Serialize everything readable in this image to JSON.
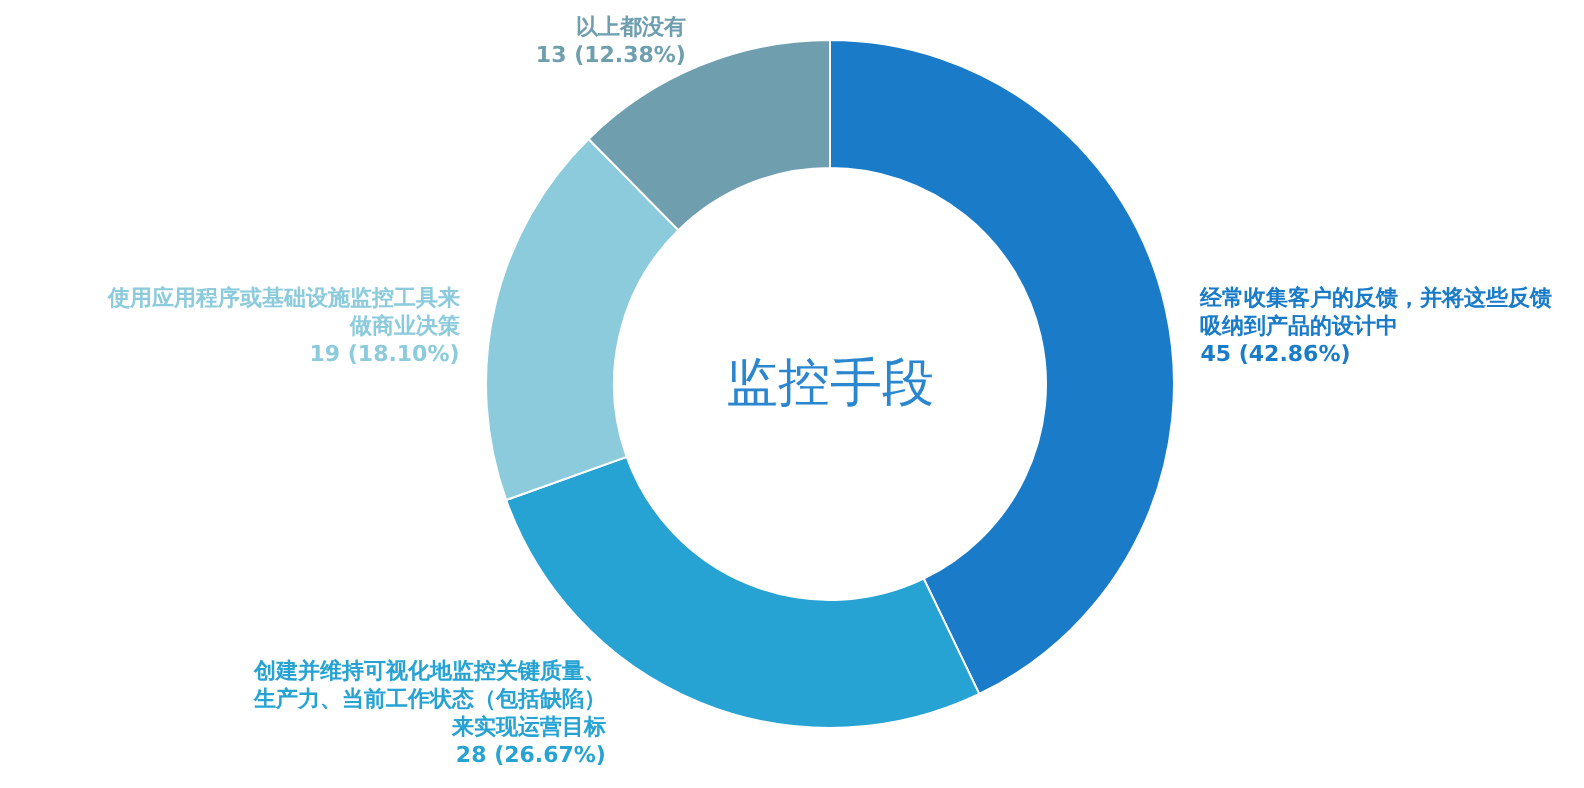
{
  "chart_data": {
    "type": "donut",
    "title": "监控手段",
    "categories": [
      "经常收集客户的反馈，并将这些反馈吸纳到产品的设计中",
      "创建并维持可视化地监控关键质量、生产力、当前工作状态（包括缺陷）来实现运营目标",
      "使用应用程序或基础设施监控工具来做商业决策",
      "以上都没有"
    ],
    "values": [
      45,
      28,
      19,
      13
    ],
    "value_labels": [
      "45 (42.86%)",
      "28 (26.67%)",
      "19 (18.10%)",
      "13 (12.38%)"
    ],
    "colors": [
      "#1a7cc8",
      "#27a3d3",
      "#8ccbdc",
      "#6f9faf"
    ]
  }
}
